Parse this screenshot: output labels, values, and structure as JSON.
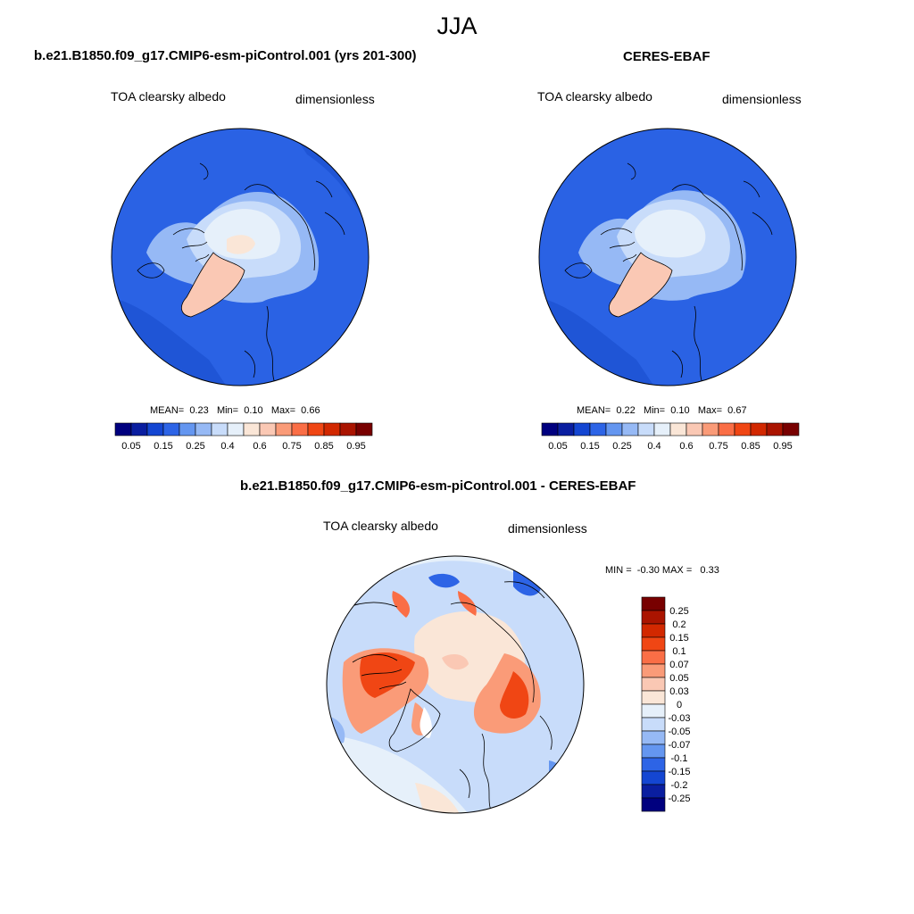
{
  "season": "JJA",
  "panels": [
    {
      "title": "b.e21.B1850.f09_g17.CMIP6-esm-piControl.001 (yrs 201-300)",
      "variable": "TOA clearsky albedo",
      "units": "dimensionless",
      "stats": {
        "mean_label": "MEAN=",
        "mean": "0.23",
        "min_label": "Min=",
        "min": "0.10",
        "max_label": "Max=",
        "max": "0.66"
      }
    },
    {
      "title": "CERES-EBAF",
      "variable": "TOA clearsky albedo",
      "units": "dimensionless",
      "stats": {
        "mean_label": "MEAN=",
        "mean": "0.22",
        "min_label": "Min=",
        "min": "0.10",
        "max_label": "Max=",
        "max": "0.67"
      }
    },
    {
      "title": "b.e21.B1850.f09_g17.CMIP6-esm-piControl.001 - CERES-EBAF",
      "variable": "TOA clearsky albedo",
      "units": "dimensionless",
      "stats": {
        "min_label": "MIN =",
        "min": "-0.30",
        "max_label": "MAX =",
        "max": "0.33"
      }
    }
  ],
  "abs_colorbar": {
    "labels": [
      "0.05",
      "0.15",
      "0.25",
      "0.4",
      "0.6",
      "0.75",
      "0.85",
      "0.95"
    ],
    "colors": [
      "#00007f",
      "#0a1ea0",
      "#1446d2",
      "#2d64e6",
      "#6496f0",
      "#96b9f5",
      "#c8dcfa",
      "#e6f0fa",
      "#fae6d7",
      "#fac8b4",
      "#fa9b78",
      "#fa6e46",
      "#f04614",
      "#d22800",
      "#aa1400",
      "#780000"
    ]
  },
  "diff_colorbar": {
    "labels": [
      "0.25",
      "0.2",
      "0.15",
      "0.1",
      "0.07",
      "0.05",
      "0.03",
      "0",
      "-0.03",
      "-0.05",
      "-0.07",
      "-0.1",
      "-0.15",
      "-0.2",
      "-0.25"
    ],
    "colors": [
      "#780000",
      "#aa1400",
      "#d22800",
      "#f04614",
      "#fa6e46",
      "#fa9b78",
      "#fac8b4",
      "#fae6d7",
      "#e6f0fa",
      "#c8dcfa",
      "#96b9f5",
      "#6496f0",
      "#2d64e6",
      "#1446d2",
      "#0a1ea0",
      "#00007f"
    ]
  }
}
